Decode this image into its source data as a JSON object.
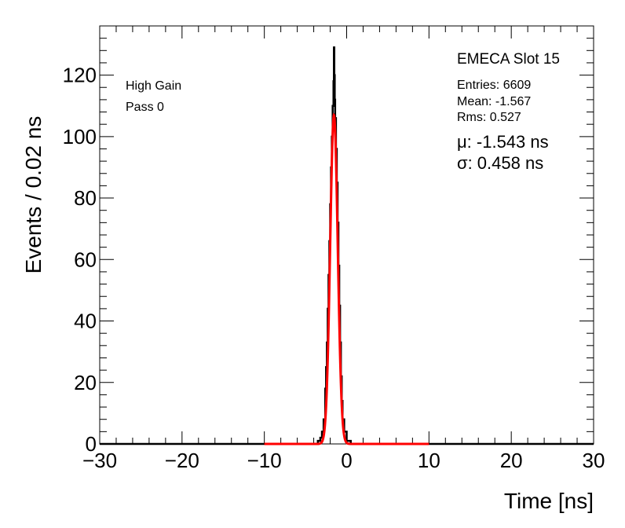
{
  "chart_data": {
    "type": "histogram",
    "title": "EMECA Slot 15",
    "xlabel": "Time [ns]",
    "ylabel": "Events / 0.02 ns",
    "xlim": [
      -30,
      30
    ],
    "ylim": [
      0,
      136
    ],
    "x_ticks": [
      -30,
      -20,
      -10,
      0,
      10,
      20,
      30
    ],
    "y_ticks": [
      0,
      20,
      40,
      60,
      80,
      100,
      120
    ],
    "x_tick_labels": [
      "−30",
      "−20",
      "−10",
      "0",
      "10",
      "20",
      "30"
    ],
    "y_tick_labels": [
      "0",
      "20",
      "40",
      "60",
      "80",
      "100",
      "120"
    ],
    "grid": false,
    "annotations": {
      "gain": "High Gain",
      "pass": "Pass 0"
    },
    "stats": {
      "entries": "Entries: 6609",
      "mean": "Mean: -1.567",
      "rms": "Rms: 0.527",
      "mu": "μ: -1.543 ns",
      "sigma": "σ: 0.458 ns"
    },
    "histogram": {
      "color": "#000000",
      "bin_width": 0.02,
      "x": [
        -4.0,
        -3.5,
        -3.2,
        -3.0,
        -2.8,
        -2.6,
        -2.5,
        -2.4,
        -2.3,
        -2.2,
        -2.1,
        -2.0,
        -1.9,
        -1.8,
        -1.7,
        -1.6,
        -1.55,
        -1.5,
        -1.45,
        -1.4,
        -1.3,
        -1.2,
        -1.1,
        -1.0,
        -0.9,
        -0.8,
        -0.7,
        -0.6,
        -0.5,
        -0.3,
        0.0,
        0.5
      ],
      "counts": [
        0,
        1,
        2,
        4,
        8,
        18,
        25,
        33,
        44,
        55,
        66,
        78,
        90,
        100,
        110,
        118,
        129,
        120,
        112,
        106,
        96,
        85,
        72,
        58,
        45,
        33,
        22,
        14,
        8,
        4,
        1,
        0
      ]
    },
    "fit": {
      "color": "#ff0000",
      "mu": -1.543,
      "sigma": 0.458,
      "amplitude": 107,
      "range": [
        -10,
        10
      ]
    }
  }
}
